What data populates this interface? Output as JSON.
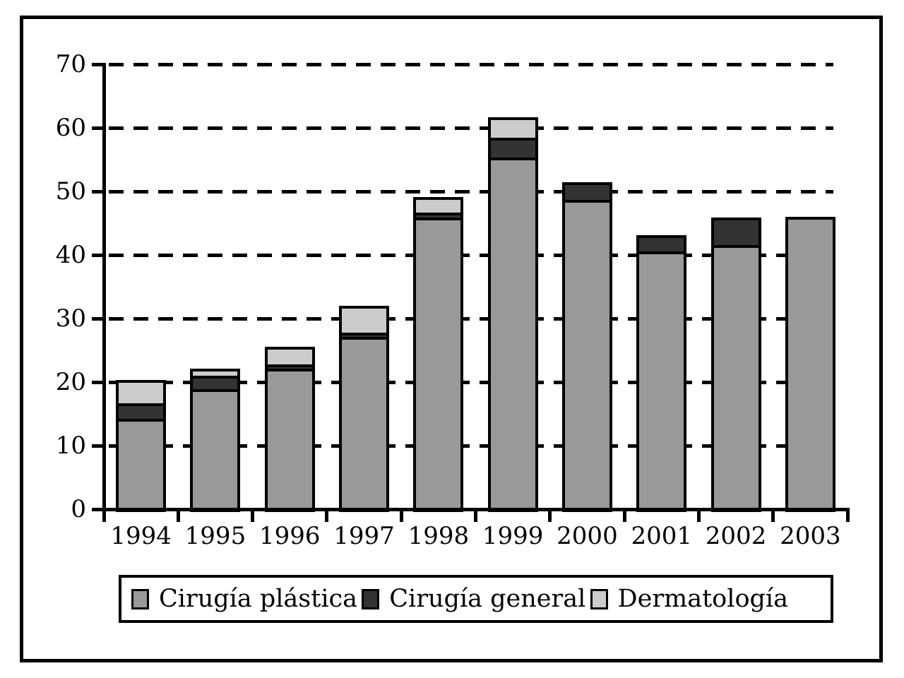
{
  "figure": {
    "background": "#ffffff",
    "frame_color": "#000000",
    "axis_color": "#000000"
  },
  "chart_data": {
    "type": "bar",
    "stacked": true,
    "title": "",
    "xlabel": "",
    "ylabel": "",
    "categories": [
      "1994",
      "1995",
      "1996",
      "1997",
      "1998",
      "1999",
      "2000",
      "2001",
      "2002",
      "2003"
    ],
    "series": [
      {
        "name": "Cirugía plástica",
        "color": "#999999",
        "values": [
          14.2,
          18.9,
          22.1,
          27.1,
          45.9,
          55.3,
          48.7,
          40.6,
          41.6,
          46.0
        ]
      },
      {
        "name": "Cirugía general",
        "color": "#333333",
        "values": [
          2.5,
          2.1,
          0.7,
          0.7,
          0.8,
          3.1,
          2.7,
          2.5,
          4.3,
          0
        ]
      },
      {
        "name": "Dermatología",
        "color": "#cccccc",
        "values": [
          3.6,
          1.1,
          2.8,
          4.2,
          2.4,
          3.3,
          0,
          0,
          0,
          0
        ]
      }
    ],
    "totals": [
      20.3,
      22.1,
      25.6,
      32.0,
      49.1,
      61.7,
      51.4,
      43.1,
      45.9,
      46.0
    ],
    "ylim": [
      0,
      70
    ],
    "yticks": [
      0,
      10,
      20,
      30,
      40,
      50,
      60,
      70
    ],
    "grid": "horizontal-dashed",
    "legend_position": "bottom"
  }
}
